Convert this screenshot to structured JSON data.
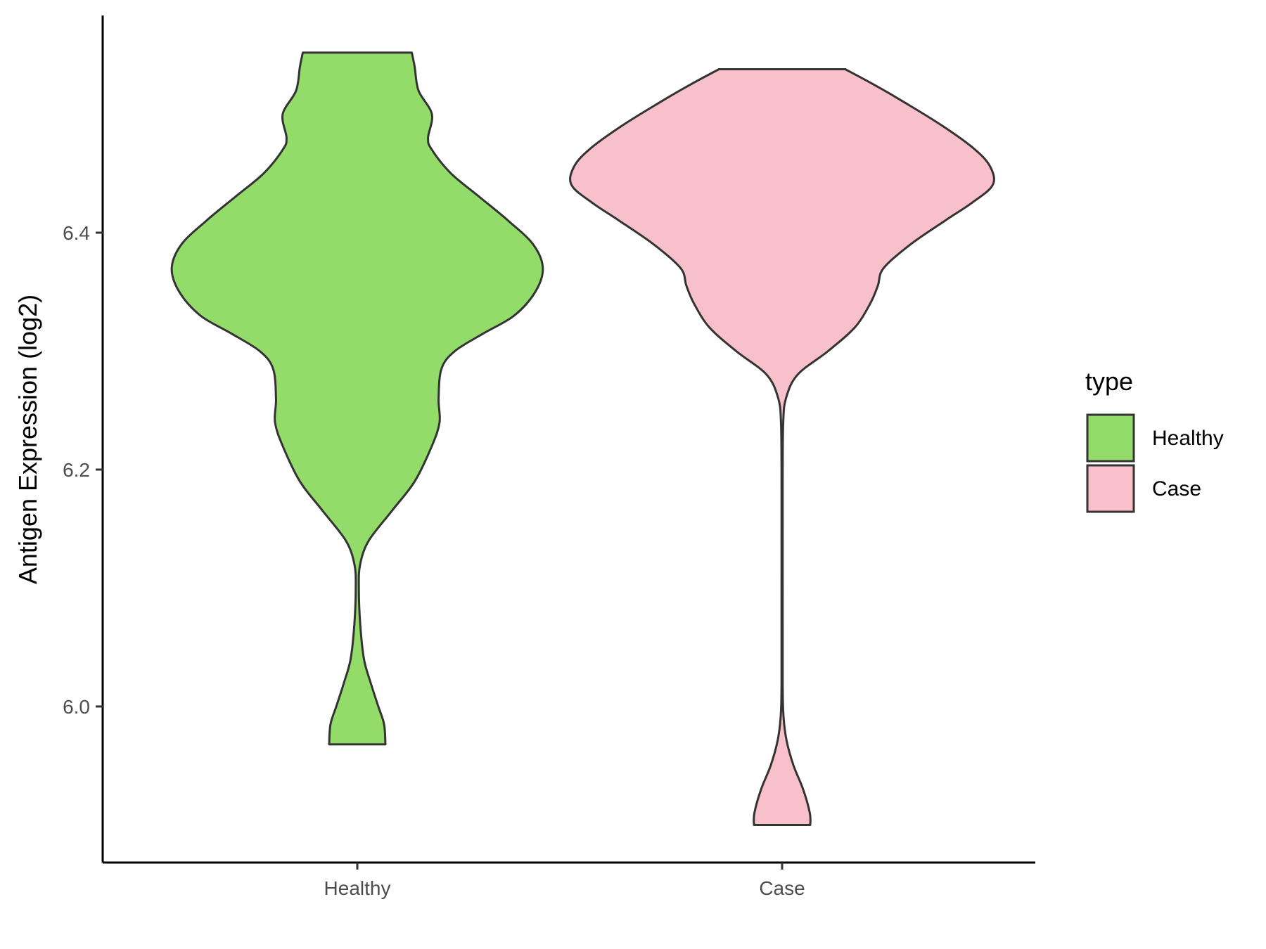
{
  "chart_data": {
    "type": "violin",
    "title": "",
    "xlabel": "",
    "ylabel": "Antigen Expression (log2)",
    "ylim": [
      5.885,
      6.6
    ],
    "yticks": [
      6.0,
      6.2,
      6.4
    ],
    "ytick_labels": [
      "6.0",
      "6.2",
      "6.4"
    ],
    "categories": [
      "Healthy",
      "Case"
    ],
    "grid": false,
    "legend": {
      "title": "type",
      "position": "right",
      "entries": [
        {
          "label": "Healthy",
          "color": "#93dc6a"
        },
        {
          "label": "Case",
          "color": "#f8c0cb"
        }
      ]
    },
    "series": [
      {
        "category": "Healthy",
        "color": "#93dc6a",
        "min": 5.968,
        "max": 6.552,
        "density_profile": [
          [
            5.968,
            0.147
          ],
          [
            5.985,
            0.14
          ],
          [
            6.0,
            0.11
          ],
          [
            6.02,
            0.07
          ],
          [
            6.04,
            0.035
          ],
          [
            6.07,
            0.015
          ],
          [
            6.1,
            0.008
          ],
          [
            6.12,
            0.015
          ],
          [
            6.14,
            0.06
          ],
          [
            6.165,
            0.18
          ],
          [
            6.19,
            0.3
          ],
          [
            6.22,
            0.39
          ],
          [
            6.24,
            0.43
          ],
          [
            6.26,
            0.425
          ],
          [
            6.285,
            0.44
          ],
          [
            6.3,
            0.51
          ],
          [
            6.315,
            0.66
          ],
          [
            6.33,
            0.82
          ],
          [
            6.35,
            0.93
          ],
          [
            6.37,
            0.97
          ],
          [
            6.39,
            0.92
          ],
          [
            6.41,
            0.79
          ],
          [
            6.43,
            0.64
          ],
          [
            6.45,
            0.49
          ],
          [
            6.47,
            0.39
          ],
          [
            6.48,
            0.37
          ],
          [
            6.5,
            0.39
          ],
          [
            6.52,
            0.32
          ],
          [
            6.54,
            0.3
          ],
          [
            6.552,
            0.285
          ]
        ]
      },
      {
        "category": "Case",
        "color": "#f8c0cb",
        "min": 5.9,
        "max": 6.538,
        "density_profile": [
          [
            5.9,
            0.147
          ],
          [
            5.91,
            0.145
          ],
          [
            5.93,
            0.11
          ],
          [
            5.95,
            0.06
          ],
          [
            5.97,
            0.025
          ],
          [
            5.99,
            0.008
          ],
          [
            6.02,
            0.003
          ],
          [
            6.1,
            0.003
          ],
          [
            6.2,
            0.003
          ],
          [
            6.24,
            0.006
          ],
          [
            6.26,
            0.02
          ],
          [
            6.28,
            0.08
          ],
          [
            6.3,
            0.24
          ],
          [
            6.32,
            0.38
          ],
          [
            6.34,
            0.46
          ],
          [
            6.355,
            0.5
          ],
          [
            6.37,
            0.53
          ],
          [
            6.39,
            0.67
          ],
          [
            6.41,
            0.85
          ],
          [
            6.425,
            0.99
          ],
          [
            6.44,
            1.1
          ],
          [
            6.455,
            1.09
          ],
          [
            6.47,
            1.01
          ],
          [
            6.49,
            0.84
          ],
          [
            6.51,
            0.64
          ],
          [
            6.525,
            0.48
          ],
          [
            6.538,
            0.33
          ]
        ]
      }
    ]
  }
}
